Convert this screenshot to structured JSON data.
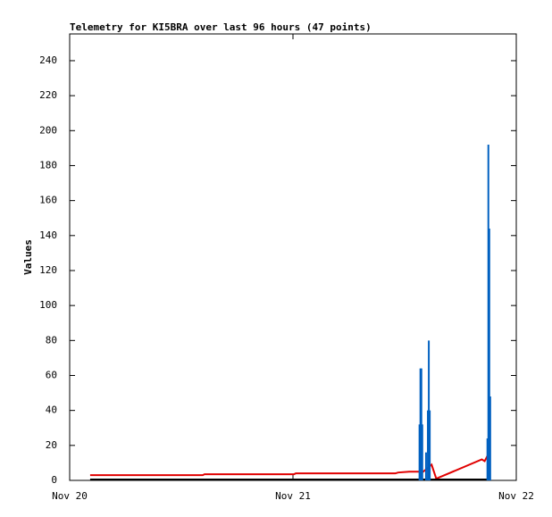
{
  "chart_data": {
    "type": "line",
    "title": "Telemetry for KI5BRA over last 96 hours (47 points)",
    "y_label": "Values",
    "xlim": [
      0,
      48
    ],
    "xticks": [
      {
        "value": 0,
        "label": "Nov 20"
      },
      {
        "value": 24,
        "label": "Nov 21"
      },
      {
        "value": 48,
        "label": "Nov 22"
      }
    ],
    "ylim": [
      0,
      255.3
    ],
    "yticks": [
      0,
      20,
      40,
      60,
      80,
      100,
      120,
      140,
      160,
      180,
      200,
      220,
      240
    ],
    "series": [
      {
        "style": "lines",
        "color": "#e00000",
        "x": [
          2.2,
          14.3,
          14.5,
          24.1,
          24.3,
          35.0,
          35.3,
          36.5,
          38.0,
          38.9,
          39.4,
          44.3,
          44.6,
          44.9,
          45.1
        ],
        "values": [
          3,
          3,
          3.5,
          3.5,
          4,
          4,
          4.5,
          5,
          5,
          9,
          1,
          12,
          11,
          14,
          10
        ]
      },
      {
        "style": "lines",
        "color": "#000000",
        "x": [
          2.2,
          45.2
        ],
        "values": [
          0.5,
          0.5
        ]
      },
      {
        "style": "impulses",
        "color": "#0060c0",
        "x": [
          37.6,
          37.7,
          37.8,
          37.9,
          38.3,
          38.5,
          38.6,
          38.7,
          44.9,
          45.0,
          45.1,
          45.2
        ],
        "values": [
          32,
          64,
          64,
          32,
          16,
          40,
          80,
          40,
          24,
          192,
          144,
          48
        ]
      }
    ]
  }
}
